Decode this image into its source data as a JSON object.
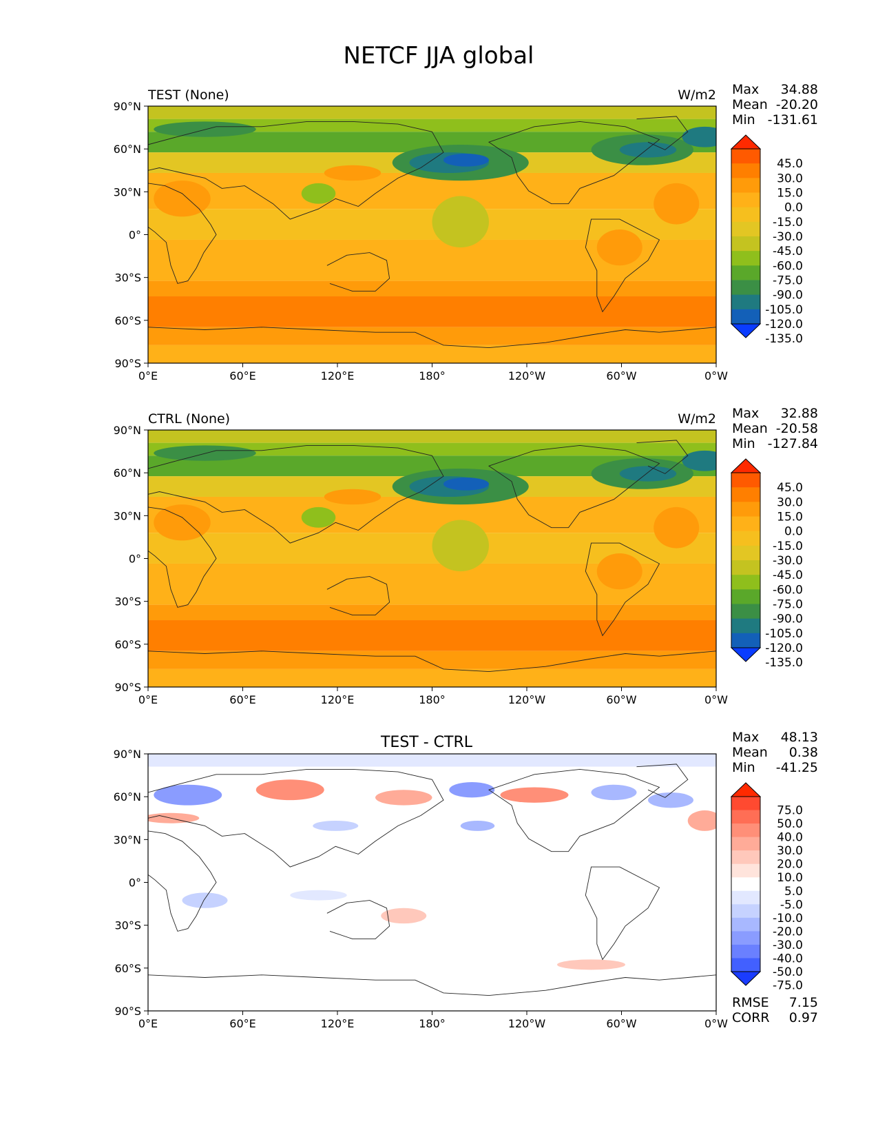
{
  "figure_title": "NETCF JJA global",
  "lon_ticks": [
    "0°E",
    "60°E",
    "120°E",
    "180°",
    "120°W",
    "60°W",
    "0°W"
  ],
  "lat_ticks": [
    "90°N",
    "60°N",
    "30°N",
    "0°",
    "30°S",
    "60°S",
    "90°S"
  ],
  "panels": [
    {
      "id": "test",
      "left_title": "TEST (None)",
      "center_title": "",
      "units": "W/m2",
      "stats": [
        {
          "label": "Max",
          "value": "34.88"
        },
        {
          "label": "Mean",
          "value": "-20.20"
        },
        {
          "label": "Min",
          "value": "-131.61"
        }
      ],
      "colorbar": {
        "labels": [
          "45.0",
          "30.0",
          "15.0",
          "0.0",
          "-15.0",
          "-30.0",
          "-45.0",
          "-60.0",
          "-75.0",
          "-90.0",
          "-105.0",
          "-120.0",
          "-135.0"
        ],
        "colors": [
          "#ff2a00",
          "#ff5a00",
          "#ff7f00",
          "#ff9b0a",
          "#ffb118",
          "#f6bf1e",
          "#e3c623",
          "#c4c320",
          "#8fbf1c",
          "#5aa82a",
          "#3b8f45",
          "#1f7a80",
          "#1360b8",
          "#0a3cff"
        ]
      },
      "bottom_stats": []
    },
    {
      "id": "ctrl",
      "left_title": "CTRL (None)",
      "center_title": "",
      "units": "W/m2",
      "stats": [
        {
          "label": "Max",
          "value": "32.88"
        },
        {
          "label": "Mean",
          "value": "-20.58"
        },
        {
          "label": "Min",
          "value": "-127.84"
        }
      ],
      "colorbar": {
        "labels": [
          "45.0",
          "30.0",
          "15.0",
          "0.0",
          "-15.0",
          "-30.0",
          "-45.0",
          "-60.0",
          "-75.0",
          "-90.0",
          "-105.0",
          "-120.0",
          "-135.0"
        ],
        "colors": [
          "#ff2a00",
          "#ff5a00",
          "#ff7f00",
          "#ff9b0a",
          "#ffb118",
          "#f6bf1e",
          "#e3c623",
          "#c4c320",
          "#8fbf1c",
          "#5aa82a",
          "#3b8f45",
          "#1f7a80",
          "#1360b8",
          "#0a3cff"
        ]
      },
      "bottom_stats": []
    },
    {
      "id": "diff",
      "left_title": "",
      "center_title": "TEST - CTRL",
      "units": "",
      "stats": [
        {
          "label": "Max",
          "value": "48.13"
        },
        {
          "label": "Mean",
          "value": "0.38"
        },
        {
          "label": "Min",
          "value": "-41.25"
        }
      ],
      "colorbar": {
        "labels": [
          "75.0",
          "50.0",
          "40.0",
          "30.0",
          "20.0",
          "10.0",
          "5.0",
          "-5.0",
          "-10.0",
          "-20.0",
          "-30.0",
          "-40.0",
          "-50.0",
          "-75.0"
        ],
        "colors": [
          "#ff2a00",
          "#ff4a30",
          "#ff6e55",
          "#ff8f78",
          "#ffab98",
          "#ffc8bb",
          "#ffe4dc",
          "#ffffff",
          "#e2e8ff",
          "#c6d2ff",
          "#a8b8ff",
          "#8a9cff",
          "#6a80ff",
          "#4260ff",
          "#1a3cff"
        ]
      },
      "bottom_stats": [
        {
          "label": "RMSE",
          "value": "7.15"
        },
        {
          "label": "CORR",
          "value": "0.97"
        }
      ]
    }
  ],
  "colors": {
    "test_background": "#f5bb1f",
    "diff_background": "#ffffff",
    "coastline": "#222222"
  }
}
